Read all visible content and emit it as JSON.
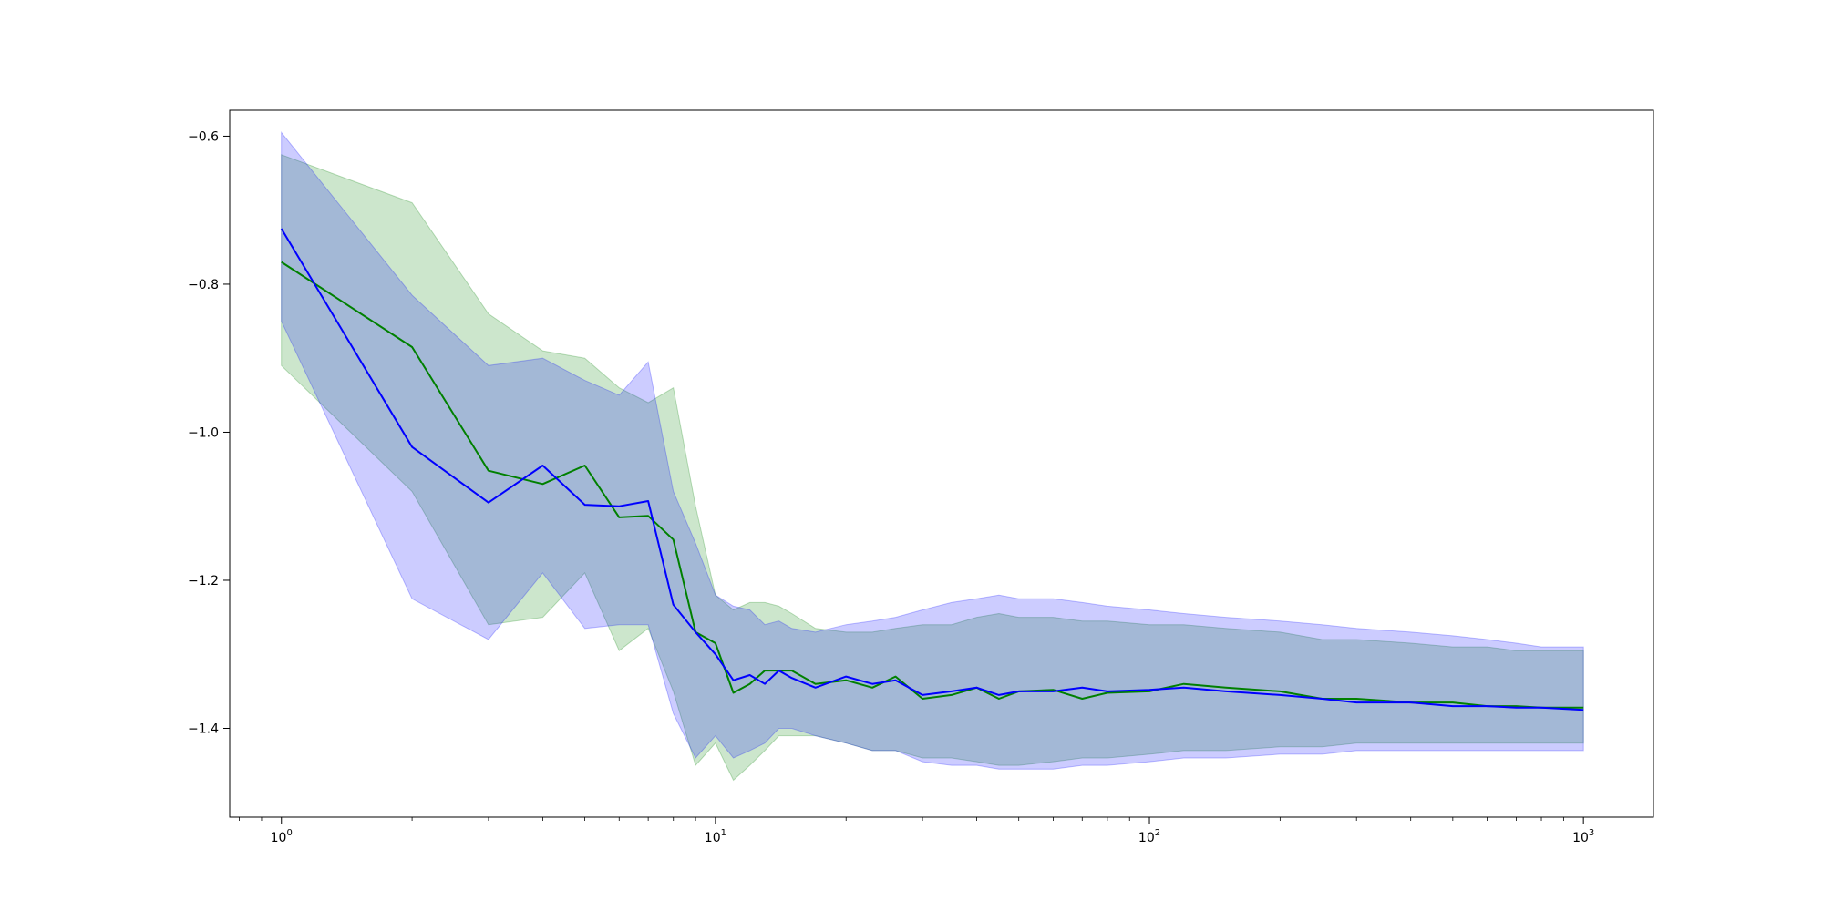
{
  "chart_data": {
    "type": "line",
    "title": "",
    "xlabel": "",
    "ylabel": "",
    "xscale": "log",
    "xlim": [
      0.76,
      1450
    ],
    "ylim": [
      -1.52,
      -0.565
    ],
    "grid": false,
    "x_ticks": [
      {
        "value": 1,
        "base": "10",
        "exp": "0"
      },
      {
        "value": 10,
        "base": "10",
        "exp": "1"
      },
      {
        "value": 100,
        "base": "10",
        "exp": "2"
      },
      {
        "value": 1000,
        "base": "10",
        "exp": "3"
      }
    ],
    "y_ticks": [
      {
        "value": -0.6,
        "label": "−0.6"
      },
      {
        "value": -0.8,
        "label": "−0.8"
      },
      {
        "value": -1.0,
        "label": "−1.0"
      },
      {
        "value": -1.2,
        "label": "−1.2"
      },
      {
        "value": -1.4,
        "label": "−1.4"
      }
    ],
    "series": [
      {
        "color": "#008000",
        "band_color": "#008000",
        "x": [
          1,
          2,
          3,
          4,
          5,
          6,
          7,
          8,
          9,
          10,
          11,
          12,
          13,
          14,
          15,
          17,
          20,
          23,
          26,
          30,
          35,
          40,
          45,
          50,
          60,
          70,
          80,
          100,
          120,
          150,
          200,
          250,
          300,
          400,
          500,
          600,
          700,
          800,
          1000
        ],
        "mean": [
          -0.77,
          -0.885,
          -1.052,
          -1.07,
          -1.045,
          -1.115,
          -1.113,
          -1.145,
          -1.27,
          -1.285,
          -1.352,
          -1.34,
          -1.322,
          -1.322,
          -1.322,
          -1.34,
          -1.335,
          -1.345,
          -1.33,
          -1.36,
          -1.355,
          -1.345,
          -1.36,
          -1.35,
          -1.348,
          -1.36,
          -1.352,
          -1.35,
          -1.34,
          -1.345,
          -1.35,
          -1.36,
          -1.36,
          -1.365,
          -1.365,
          -1.37,
          -1.37,
          -1.372,
          -1.372
        ],
        "upper": [
          -0.625,
          -0.69,
          -0.84,
          -0.89,
          -0.9,
          -0.94,
          -0.96,
          -0.94,
          -1.1,
          -1.22,
          -1.24,
          -1.23,
          -1.23,
          -1.235,
          -1.245,
          -1.265,
          -1.27,
          -1.27,
          -1.265,
          -1.26,
          -1.26,
          -1.25,
          -1.245,
          -1.25,
          -1.25,
          -1.255,
          -1.255,
          -1.26,
          -1.26,
          -1.265,
          -1.27,
          -1.28,
          -1.28,
          -1.285,
          -1.29,
          -1.29,
          -1.295,
          -1.295,
          -1.295
        ],
        "lower": [
          -0.91,
          -1.08,
          -1.26,
          -1.25,
          -1.19,
          -1.295,
          -1.265,
          -1.35,
          -1.45,
          -1.42,
          -1.47,
          -1.45,
          -1.43,
          -1.41,
          -1.41,
          -1.41,
          -1.42,
          -1.43,
          -1.43,
          -1.44,
          -1.44,
          -1.445,
          -1.45,
          -1.45,
          -1.445,
          -1.44,
          -1.44,
          -1.435,
          -1.43,
          -1.43,
          -1.425,
          -1.425,
          -1.42,
          -1.42,
          -1.42,
          -1.42,
          -1.42,
          -1.42,
          -1.42
        ]
      },
      {
        "color": "#0000ff",
        "band_color": "#0000ff",
        "x": [
          1,
          2,
          3,
          4,
          5,
          6,
          7,
          8,
          9,
          10,
          11,
          12,
          13,
          14,
          15,
          17,
          20,
          23,
          26,
          30,
          35,
          40,
          45,
          50,
          60,
          70,
          80,
          100,
          120,
          150,
          200,
          250,
          300,
          400,
          500,
          600,
          700,
          800,
          1000
        ],
        "mean": [
          -0.725,
          -1.02,
          -1.095,
          -1.045,
          -1.098,
          -1.1,
          -1.093,
          -1.233,
          -1.27,
          -1.3,
          -1.335,
          -1.328,
          -1.34,
          -1.322,
          -1.332,
          -1.345,
          -1.33,
          -1.34,
          -1.335,
          -1.355,
          -1.35,
          -1.345,
          -1.355,
          -1.35,
          -1.35,
          -1.345,
          -1.35,
          -1.348,
          -1.345,
          -1.35,
          -1.355,
          -1.36,
          -1.365,
          -1.365,
          -1.37,
          -1.37,
          -1.372,
          -1.372,
          -1.375
        ],
        "upper": [
          -0.595,
          -0.815,
          -0.91,
          -0.9,
          -0.93,
          -0.95,
          -0.905,
          -1.08,
          -1.15,
          -1.22,
          -1.235,
          -1.24,
          -1.26,
          -1.255,
          -1.265,
          -1.27,
          -1.26,
          -1.255,
          -1.25,
          -1.24,
          -1.23,
          -1.225,
          -1.22,
          -1.225,
          -1.225,
          -1.23,
          -1.235,
          -1.24,
          -1.245,
          -1.25,
          -1.255,
          -1.26,
          -1.265,
          -1.27,
          -1.275,
          -1.28,
          -1.285,
          -1.29,
          -1.29
        ],
        "lower": [
          -0.85,
          -1.225,
          -1.28,
          -1.19,
          -1.265,
          -1.26,
          -1.26,
          -1.38,
          -1.44,
          -1.41,
          -1.44,
          -1.43,
          -1.42,
          -1.4,
          -1.4,
          -1.41,
          -1.42,
          -1.43,
          -1.43,
          -1.445,
          -1.45,
          -1.45,
          -1.455,
          -1.455,
          -1.455,
          -1.45,
          -1.45,
          -1.445,
          -1.44,
          -1.44,
          -1.435,
          -1.435,
          -1.43,
          -1.43,
          -1.43,
          -1.43,
          -1.43,
          -1.43,
          -1.43
        ]
      }
    ]
  }
}
